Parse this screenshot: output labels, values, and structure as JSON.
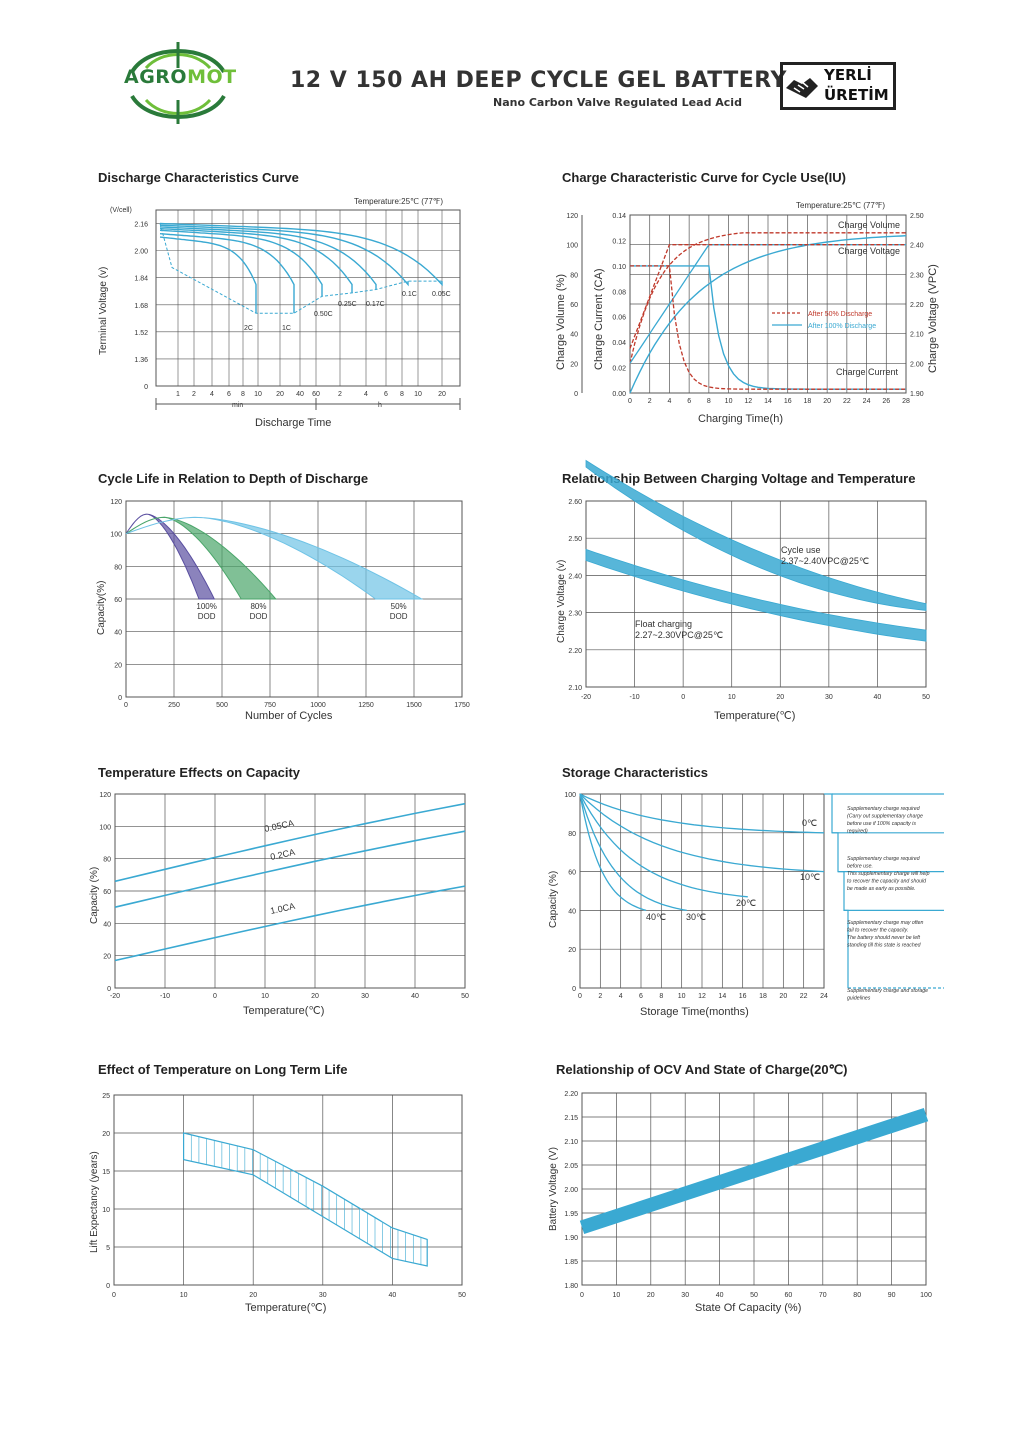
{
  "header": {
    "logo_text_a": "AGRO",
    "logo_text_b": "MOT",
    "title": "12 V 150 AH DEEP CYCLE GEL BATTERY",
    "subtitle": "Nano Carbon Valve Regulated Lead Acid",
    "badge_line1": "YERLİ",
    "badge_line2": "ÜRETİM"
  },
  "colors": {
    "curve": "#3aa9d2",
    "dashed": "#c0392b",
    "grid": "#555555",
    "logo_dark": "#2a7a3a",
    "logo_light": "#6fbf3a"
  },
  "chart_data": [
    {
      "id": "discharge",
      "type": "line",
      "title": "Discharge Characteristics Curve",
      "note": "Temperature:25℃ (77℉)",
      "ylabel": "Terminal Voltage (v)",
      "yunit": "(V/cell)",
      "xlabel": "Discharge Time",
      "xunit_min": "min",
      "xunit_h": "h",
      "yticks": [
        "0",
        "1.36",
        "1.52",
        "1.68",
        "1.84",
        "2.00",
        "2.16"
      ],
      "xticks_min": [
        "1",
        "2",
        "4",
        "6",
        "8",
        "10",
        "20",
        "40",
        "60"
      ],
      "xticks_h": [
        "2",
        "4",
        "6",
        "8",
        "10",
        "20"
      ],
      "series_labels": [
        "2C",
        "1C",
        "0.50C",
        "0.25C",
        "0.17C",
        "0.1C",
        "0.05C"
      ]
    },
    {
      "id": "charge",
      "type": "line",
      "title": "Charge Characteristic Curve for Cycle Use(IU)",
      "note": "Temperature:25℃ (77℉)",
      "ylabel_volume": "Charge Volume (%)",
      "ylabel_current": "Charge Current (CA)",
      "ylabel_voltage": "Charge Voltage (VPC)",
      "xlabel": "Charging Time(h)",
      "yticks_volume": [
        "0",
        "20",
        "40",
        "60",
        "80",
        "100",
        "120"
      ],
      "yticks_current": [
        "0.00",
        "0.02",
        "0.04",
        "0.06",
        "0.08",
        "0.10",
        "0.12",
        "0.14"
      ],
      "yticks_voltage": [
        "1.90",
        "2.00",
        "2.10",
        "2.20",
        "2.30",
        "2.40",
        "2.50"
      ],
      "xticks": [
        "0",
        "2",
        "4",
        "6",
        "8",
        "10",
        "12",
        "14",
        "16",
        "18",
        "20",
        "22",
        "24",
        "26",
        "28"
      ],
      "labels": {
        "volume": "Charge Volume",
        "voltage": "Charge Voltage",
        "current": "Charge Current"
      },
      "legend": [
        "After 50% Discharge",
        "After 100% Discharge"
      ]
    },
    {
      "id": "cyclelife",
      "type": "line",
      "title": "Cycle Life in Relation to Depth of Discharge",
      "ylabel": "Capacity(%)",
      "xlabel": "Number of Cycles",
      "yticks": [
        "0",
        "20",
        "40",
        "60",
        "80",
        "100",
        "120"
      ],
      "xticks": [
        "0",
        "250",
        "500",
        "750",
        "1000",
        "1250",
        "1500",
        "1750"
      ],
      "series": [
        {
          "name": "100%",
          "sub": "DOD",
          "end_cycles": [
            380,
            460
          ]
        },
        {
          "name": "80%",
          "sub": "DOD",
          "end_cycles": [
            600,
            780
          ]
        },
        {
          "name": "50%",
          "sub": "DOD",
          "end_cycles": [
            1300,
            1540
          ]
        }
      ]
    },
    {
      "id": "chargevoltage",
      "type": "area",
      "title": "Relationship Between Charging Voltage and Temperature",
      "ylabel": "Charge Voltage (v)",
      "xlabel": "Temperature(℃)",
      "yticks": [
        "2.10",
        "2.20",
        "2.30",
        "2.40",
        "2.50",
        "2.60"
      ],
      "xticks": [
        "-20",
        "-10",
        "0",
        "10",
        "20",
        "30",
        "40",
        "50"
      ],
      "cycle_label": "Cycle use",
      "cycle_range": "2.37~2.40VPC@25℃",
      "float_label": "Float charging",
      "float_range": "2.27~2.30VPC@25℃"
    },
    {
      "id": "tempcapacity",
      "type": "line",
      "title": "Temperature Effects on Capacity",
      "ylabel": "Capacity (%)",
      "xlabel": "Temperature(℃)",
      "yticks": [
        "0",
        "20",
        "40",
        "60",
        "80",
        "100",
        "120"
      ],
      "xticks": [
        "-20",
        "-10",
        "0",
        "10",
        "20",
        "30",
        "40",
        "50"
      ],
      "series": [
        {
          "name": "0.05CA",
          "x": [
            -20,
            50
          ],
          "y": [
            66,
            114
          ]
        },
        {
          "name": "0.2CA",
          "x": [
            -20,
            50
          ],
          "y": [
            50,
            97
          ]
        },
        {
          "name": "1.0CA",
          "x": [
            -20,
            50
          ],
          "y": [
            17,
            63
          ]
        }
      ]
    },
    {
      "id": "storage",
      "type": "line",
      "title": "Storage Characteristics",
      "ylabel": "Capacity (%)",
      "xlabel": "Storage Time(months)",
      "yticks": [
        "0",
        "20",
        "40",
        "60",
        "80",
        "100"
      ],
      "xticks": [
        "0",
        "2",
        "4",
        "6",
        "8",
        "10",
        "12",
        "14",
        "16",
        "18",
        "20",
        "22",
        "24"
      ],
      "series": [
        {
          "name": "0℃",
          "x": [
            0,
            24
          ],
          "y": [
            100,
            80
          ]
        },
        {
          "name": "10℃",
          "x": [
            0,
            24
          ],
          "y": [
            100,
            60
          ]
        },
        {
          "name": "20℃",
          "x": [
            0,
            16.5
          ],
          "y": [
            100,
            47
          ]
        },
        {
          "name": "30℃",
          "x": [
            0,
            10.5
          ],
          "y": [
            100,
            40
          ]
        },
        {
          "name": "40℃",
          "x": [
            0,
            6.5
          ],
          "y": [
            100,
            40
          ]
        }
      ],
      "notes": [
        [
          "Supplementary charge required",
          "(Carry out supplementary charge",
          "before use if 100% capacity is",
          "required)"
        ],
        [
          "Supplementary charge required",
          "before use.",
          "This supplementary charge will help",
          "to recover the capacity and should",
          "be made as early as possible."
        ],
        [
          "Supplementary charge may often",
          "fail to recover the capacity.",
          "The battery should never be left",
          "standing till this state is reached"
        ],
        [
          "Supplementary charge and storage",
          "guidelines"
        ]
      ]
    },
    {
      "id": "longlife",
      "type": "area",
      "title": "Effect of Temperature on Long Term Life",
      "ylabel": "Lift Expectancy (years)",
      "xlabel": "Temperature(℃)",
      "yticks": [
        "0",
        "5",
        "10",
        "15",
        "20",
        "25"
      ],
      "xticks": [
        "0",
        "10",
        "20",
        "30",
        "40",
        "50"
      ],
      "band_upper": {
        "x": [
          10,
          20,
          30,
          40,
          45
        ],
        "y": [
          20,
          17.8,
          13,
          7.5,
          6
        ]
      },
      "band_lower": {
        "x": [
          10,
          20,
          30,
          40,
          45
        ],
        "y": [
          16.5,
          14.5,
          9,
          3.5,
          2.5
        ]
      }
    },
    {
      "id": "ocv",
      "type": "line",
      "title": "Relationship of OCV And State of Charge(20℃)",
      "ylabel": "Battery Voltage (V)",
      "xlabel": "State Of Capacity (%)",
      "yticks": [
        "1.80",
        "1.85",
        "1.90",
        "1.95",
        "2.00",
        "2.05",
        "2.10",
        "2.15",
        "2.20"
      ],
      "xticks": [
        "0",
        "10",
        "20",
        "30",
        "40",
        "50",
        "60",
        "70",
        "80",
        "90",
        "100"
      ],
      "x": [
        0,
        100
      ],
      "y": [
        1.92,
        2.155
      ]
    }
  ]
}
